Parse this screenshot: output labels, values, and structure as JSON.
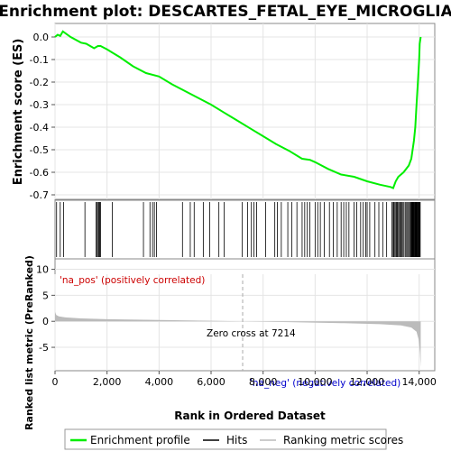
{
  "chart_data": {
    "type": "line",
    "title": "Enrichment plot: DESCARTES_FETAL_EYE_MICROGLIA",
    "panels": {
      "enrichment": {
        "ylabel": "Enrichment score (ES)",
        "ylim": [
          -0.72,
          0.06
        ],
        "yticks": [
          "0.0",
          "-0.1",
          "-0.2",
          "-0.3",
          "-0.4",
          "-0.5",
          "-0.6",
          "-0.7"
        ],
        "ytick_values": [
          0.0,
          -0.1,
          -0.2,
          -0.3,
          -0.4,
          -0.5,
          -0.6,
          -0.7
        ],
        "series": [
          {
            "name": "Enrichment profile",
            "color": "#00ee00",
            "x": [
              0,
              100,
              200,
              300,
              600,
              1000,
              1200,
              1500,
              1650,
              1750,
              2000,
              2500,
              3000,
              3500,
              4000,
              4500,
              5000,
              5500,
              6000,
              6500,
              7000,
              7500,
              8000,
              8500,
              9000,
              9500,
              9800,
              10000,
              10500,
              11000,
              11500,
              12000,
              12500,
              12900,
              13000,
              13100,
              13200,
              13400,
              13600,
              13700,
              13800,
              13850,
              13900,
              13950,
              14000,
              14020,
              14060
            ],
            "y": [
              0.0,
              0.01,
              0.005,
              0.025,
              0.0,
              -0.025,
              -0.03,
              -0.05,
              -0.04,
              -0.04,
              -0.055,
              -0.09,
              -0.13,
              -0.16,
              -0.175,
              -0.21,
              -0.24,
              -0.27,
              -0.3,
              -0.335,
              -0.37,
              -0.405,
              -0.44,
              -0.475,
              -0.505,
              -0.54,
              -0.545,
              -0.555,
              -0.585,
              -0.61,
              -0.62,
              -0.64,
              -0.655,
              -0.665,
              -0.67,
              -0.64,
              -0.62,
              -0.6,
              -0.57,
              -0.54,
              -0.46,
              -0.4,
              -0.3,
              -0.2,
              -0.1,
              -0.03,
              0.0
            ]
          }
        ]
      },
      "hits": {
        "legend_label": "Hits",
        "positions": [
          60,
          200,
          330,
          1150,
          1580,
          1620,
          1660,
          1690,
          1720,
          1750,
          2200,
          3400,
          3650,
          3750,
          3820,
          3900,
          4900,
          5200,
          5350,
          5700,
          5950,
          6300,
          6500,
          7200,
          7400,
          7550,
          7650,
          7750,
          8100,
          8450,
          8550,
          8700,
          8950,
          9100,
          9300,
          9500,
          9600,
          9700,
          9800,
          10000,
          10100,
          10200,
          10350,
          10550,
          10700,
          10850,
          11000,
          11100,
          11200,
          11300,
          11500,
          11600,
          11750,
          11850,
          11950,
          12000,
          12100,
          12300,
          12450,
          12600,
          12750,
          12950,
          13000,
          13020,
          13040,
          13080,
          13120,
          13150,
          13180,
          13220,
          13260,
          13300,
          13340,
          13380,
          13420,
          13480,
          13520,
          13560,
          13600,
          13640,
          13680,
          13700,
          13720,
          13740,
          13760,
          13780,
          13800,
          13820,
          13840,
          13860,
          13880,
          13900,
          13920,
          13940,
          13960,
          13980,
          14000,
          14020,
          14040
        ]
      },
      "ranked": {
        "ylabel": "Ranked list metric (PreRanked)",
        "ylim": [
          -9.5,
          12
        ],
        "yticks": [
          "10",
          "5",
          "0",
          "-5"
        ],
        "ytick_values": [
          10,
          5,
          0,
          -5
        ],
        "legend_label": "Ranking metric scores",
        "pos_label": "'na_pos' (positively correlated)",
        "neg_label": "'na_neg' (negatively correlated)",
        "zero_cross_label": "Zero cross at 7214",
        "zero_cross": 7214
      }
    },
    "xlabel": "Rank in Ordered Dataset",
    "xlim": [
      0,
      14600
    ],
    "xticks": [
      "0",
      "2,000",
      "4,000",
      "6,000",
      "8,000",
      "10,000",
      "12,000",
      "14,000"
    ],
    "xtick_values": [
      0,
      2000,
      4000,
      6000,
      8000,
      10000,
      12000,
      14000
    ],
    "legend": [
      "Enrichment profile",
      "Hits",
      "Ranking metric scores"
    ],
    "colors": {
      "profile": "#00ee00",
      "hit": "#000000",
      "positive": "#ff0000",
      "negative": "#0000ff",
      "metric": "#bbbbbb"
    }
  }
}
